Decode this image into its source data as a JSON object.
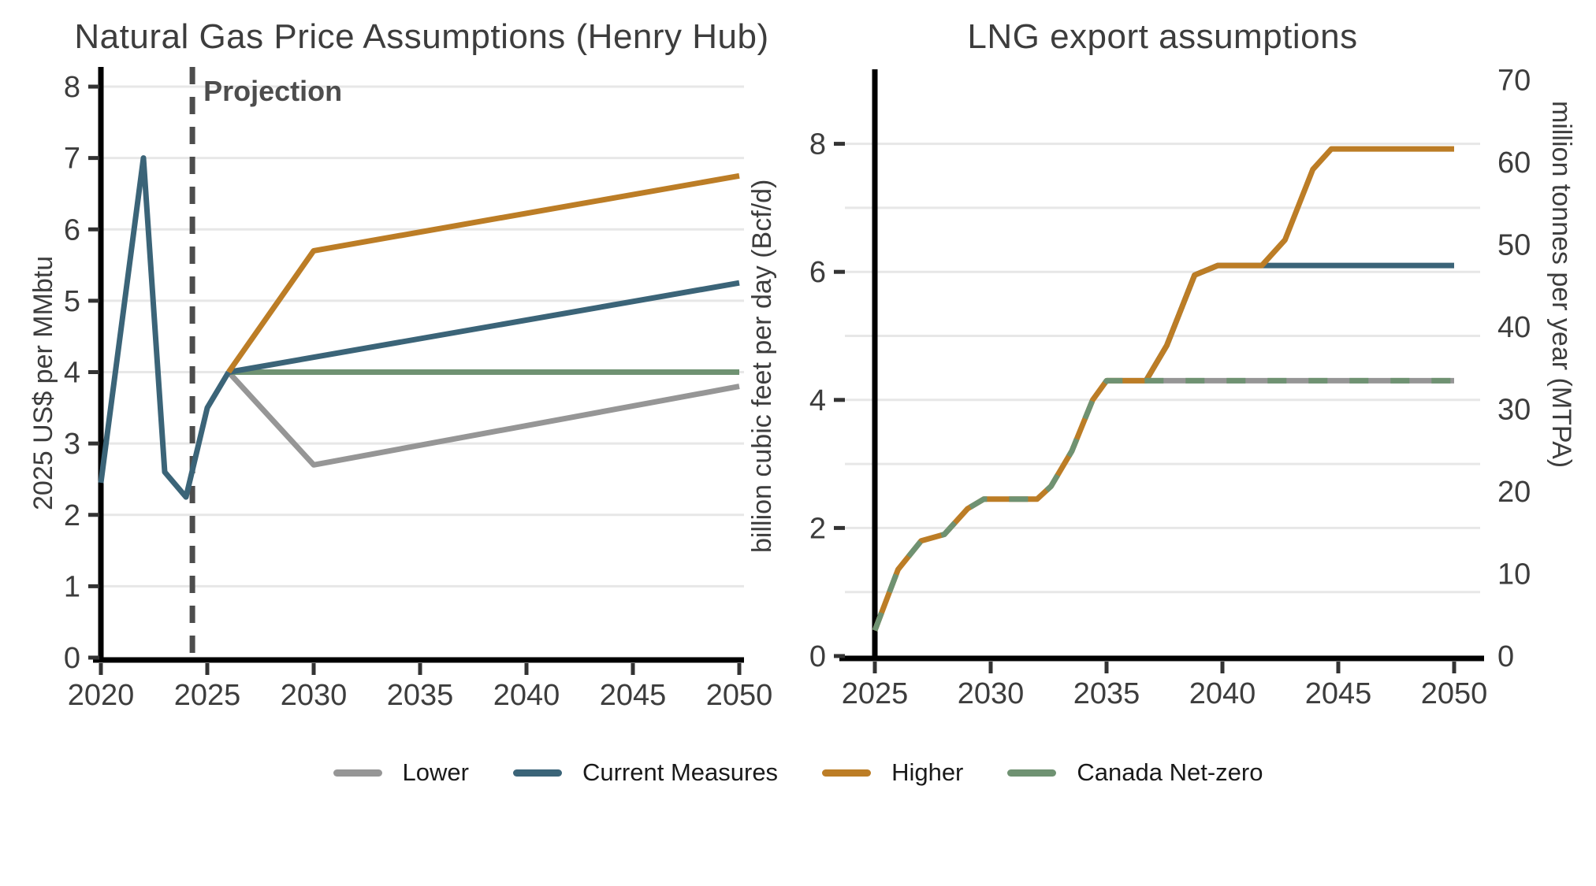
{
  "page": {
    "background": "#ffffff"
  },
  "colors": {
    "lower": "#969696",
    "current_measures": "#3b6478",
    "higher": "#bc7d26",
    "canada_net_zero": "#6f9272",
    "historical": "#3b6478",
    "projection": "#4d4d4d",
    "axis": "#000000",
    "tick": "#333333",
    "grid": "#e7e7e7",
    "text": "#3d3d3d"
  },
  "legend": {
    "items": [
      {
        "label": "Lower",
        "color_key": "lower"
      },
      {
        "label": "Current Measures",
        "color_key": "current_measures"
      },
      {
        "label": "Higher",
        "color_key": "higher"
      },
      {
        "label": "Canada Net-zero",
        "color_key": "canada_net_zero"
      }
    ]
  },
  "chart_data": [
    {
      "type": "line",
      "title": "Natural Gas Price Assumptions (Henry Hub)",
      "ylabel": "2025 US$ per MMbtu",
      "xlabel": "",
      "xlim": [
        2020,
        2050
      ],
      "ylim": [
        0,
        8
      ],
      "xticks": [
        2020,
        2025,
        2030,
        2035,
        2040,
        2045,
        2050
      ],
      "yticks": [
        0,
        1,
        2,
        3,
        4,
        5,
        6,
        7,
        8
      ],
      "grid_values": [
        1,
        2,
        3,
        4,
        5,
        6,
        7,
        8
      ],
      "annotation": {
        "label": "Projection",
        "x": 2024.3
      },
      "series": [
        {
          "name": "Lower",
          "color_key": "lower",
          "points": [
            [
              2026,
              4.0
            ],
            [
              2030,
              2.7
            ],
            [
              2050,
              3.8
            ]
          ]
        },
        {
          "name": "Canada Net-zero",
          "color_key": "canada_net_zero",
          "points": [
            [
              2026,
              4.0
            ],
            [
              2050,
              4.0
            ]
          ]
        },
        {
          "name": "Current Measures",
          "color_key": "current_measures",
          "points": [
            [
              2026,
              4.0
            ],
            [
              2050,
              5.25
            ]
          ]
        },
        {
          "name": "Higher",
          "color_key": "higher",
          "points": [
            [
              2026,
              4.0
            ],
            [
              2030,
              5.7
            ],
            [
              2050,
              6.75
            ]
          ]
        },
        {
          "name": "Historical",
          "color_key": "historical",
          "points": [
            [
              2020,
              2.45
            ],
            [
              2022,
              7.0
            ],
            [
              2023,
              2.6
            ],
            [
              2024,
              2.25
            ],
            [
              2025,
              3.5
            ],
            [
              2026,
              4.0
            ]
          ]
        }
      ]
    },
    {
      "type": "line",
      "title": "LNG export assumptions",
      "ylabel_left": "billion cubic feet per day (Bcf/d)",
      "ylabel_right": "million tonnes per year (MTPA)",
      "xlim": [
        2025,
        2050
      ],
      "ylim": [
        0,
        9.15
      ],
      "xticks": [
        2025,
        2030,
        2035,
        2040,
        2045,
        2050
      ],
      "yticks_left": [
        0,
        2,
        4,
        6,
        8
      ],
      "yticks_right": [
        0,
        10,
        20,
        30,
        40,
        50,
        60,
        70
      ],
      "right_axis_max_mtpa": 70,
      "right_axis_bcf_equivalent": 9,
      "grid_values": [
        1,
        2,
        3,
        4,
        5,
        6,
        7,
        8
      ],
      "series": [
        {
          "name": "Lower",
          "color_key": "lower",
          "points": [
            [
              2035,
              4.3
            ],
            [
              2050,
              4.3
            ]
          ]
        },
        {
          "name": "Current Measures",
          "color_key": "current_measures",
          "points": [
            [
              2036.7,
              4.3
            ],
            [
              2037.6,
              4.85
            ],
            [
              2038.8,
              5.95
            ],
            [
              2039.8,
              6.1
            ],
            [
              2050,
              6.1
            ]
          ]
        },
        {
          "name": "Higher",
          "color_key": "higher",
          "points": [
            [
              2025,
              0.4
            ],
            [
              2026,
              1.35
            ],
            [
              2027,
              1.8
            ],
            [
              2028,
              1.9
            ],
            [
              2029,
              2.3
            ],
            [
              2029.7,
              2.45
            ],
            [
              2032,
              2.45
            ],
            [
              2032.6,
              2.65
            ],
            [
              2033.5,
              3.2
            ],
            [
              2034.4,
              4.0
            ],
            [
              2035,
              4.3
            ],
            [
              2036.7,
              4.3
            ],
            [
              2037.6,
              4.85
            ],
            [
              2038.8,
              5.95
            ],
            [
              2039.8,
              6.1
            ],
            [
              2041.7,
              6.1
            ],
            [
              2042.7,
              6.5
            ],
            [
              2043.9,
              7.6
            ],
            [
              2044.7,
              7.92
            ],
            [
              2050,
              7.92
            ]
          ]
        },
        {
          "name": "Canada Net-zero",
          "color_key": "canada_net_zero",
          "dash": [
            24,
            28
          ],
          "points": [
            [
              2025,
              0.4
            ],
            [
              2026,
              1.35
            ],
            [
              2027,
              1.8
            ],
            [
              2028,
              1.9
            ],
            [
              2029,
              2.3
            ],
            [
              2029.7,
              2.45
            ],
            [
              2032,
              2.45
            ],
            [
              2032.6,
              2.65
            ],
            [
              2033.5,
              3.2
            ],
            [
              2034.4,
              4.0
            ],
            [
              2035,
              4.3
            ],
            [
              2050,
              4.3
            ]
          ]
        }
      ]
    }
  ]
}
